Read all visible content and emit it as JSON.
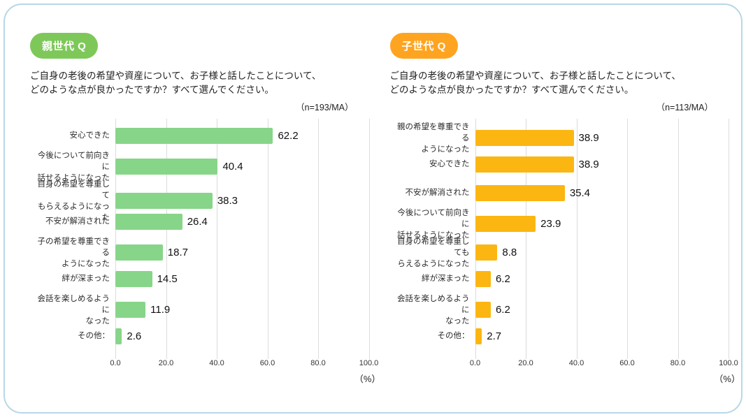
{
  "chart_data": [
    {
      "type": "bar",
      "orientation": "horizontal",
      "badge": "親世代 Q",
      "title": "ご自身の老後の希望や資産について、お子様と話したことについて、\nどのような点が良かったですか？すべて選んでください。",
      "n_label": "（n=193/MA）",
      "categories": [
        "安心できた",
        "今後について前向きに\n話せるようになった",
        "自身の希望を尊重して\nもらえるようになった",
        "不安が解消された",
        "子の希望を尊重できる\nようになった",
        "絆が深まった",
        "会話を楽しめるように\nなった",
        "その他："
      ],
      "values": [
        62.2,
        40.4,
        38.3,
        26.4,
        18.7,
        14.5,
        11.9,
        2.6
      ],
      "xlim": [
        0,
        100
      ],
      "x_ticks": [
        "0.0",
        "20.0",
        "40.0",
        "60.0",
        "80.0",
        "100.0"
      ],
      "x_unit": "（%）",
      "bar_color": "#87d589",
      "badge_color": "#7ec85a",
      "grid": true,
      "legend": "none"
    },
    {
      "type": "bar",
      "orientation": "horizontal",
      "badge": "子世代 Q",
      "title": "ご自身の老後の希望や資産について、お子様と話したことについて、\nどのような点が良かったですか？すべて選んでください。",
      "n_label": "（n=113/MA）",
      "categories": [
        "親の希望を尊重できる\nようになった",
        "安心できた",
        "不安が解消された",
        "今後について前向きに\n話せるようになった",
        "自身の希望を尊重しても\nらえるようになった",
        "絆が深まった",
        "会話を楽しめるように\nなった",
        "その他："
      ],
      "values": [
        38.9,
        38.9,
        35.4,
        23.9,
        8.8,
        6.2,
        6.2,
        2.7
      ],
      "xlim": [
        0,
        100
      ],
      "x_ticks": [
        "0.0",
        "20.0",
        "40.0",
        "60.0",
        "80.0",
        "100.0"
      ],
      "x_unit": "（%）",
      "bar_color": "#fcb612",
      "badge_color": "#ffa420",
      "grid": true,
      "legend": "none"
    }
  ]
}
